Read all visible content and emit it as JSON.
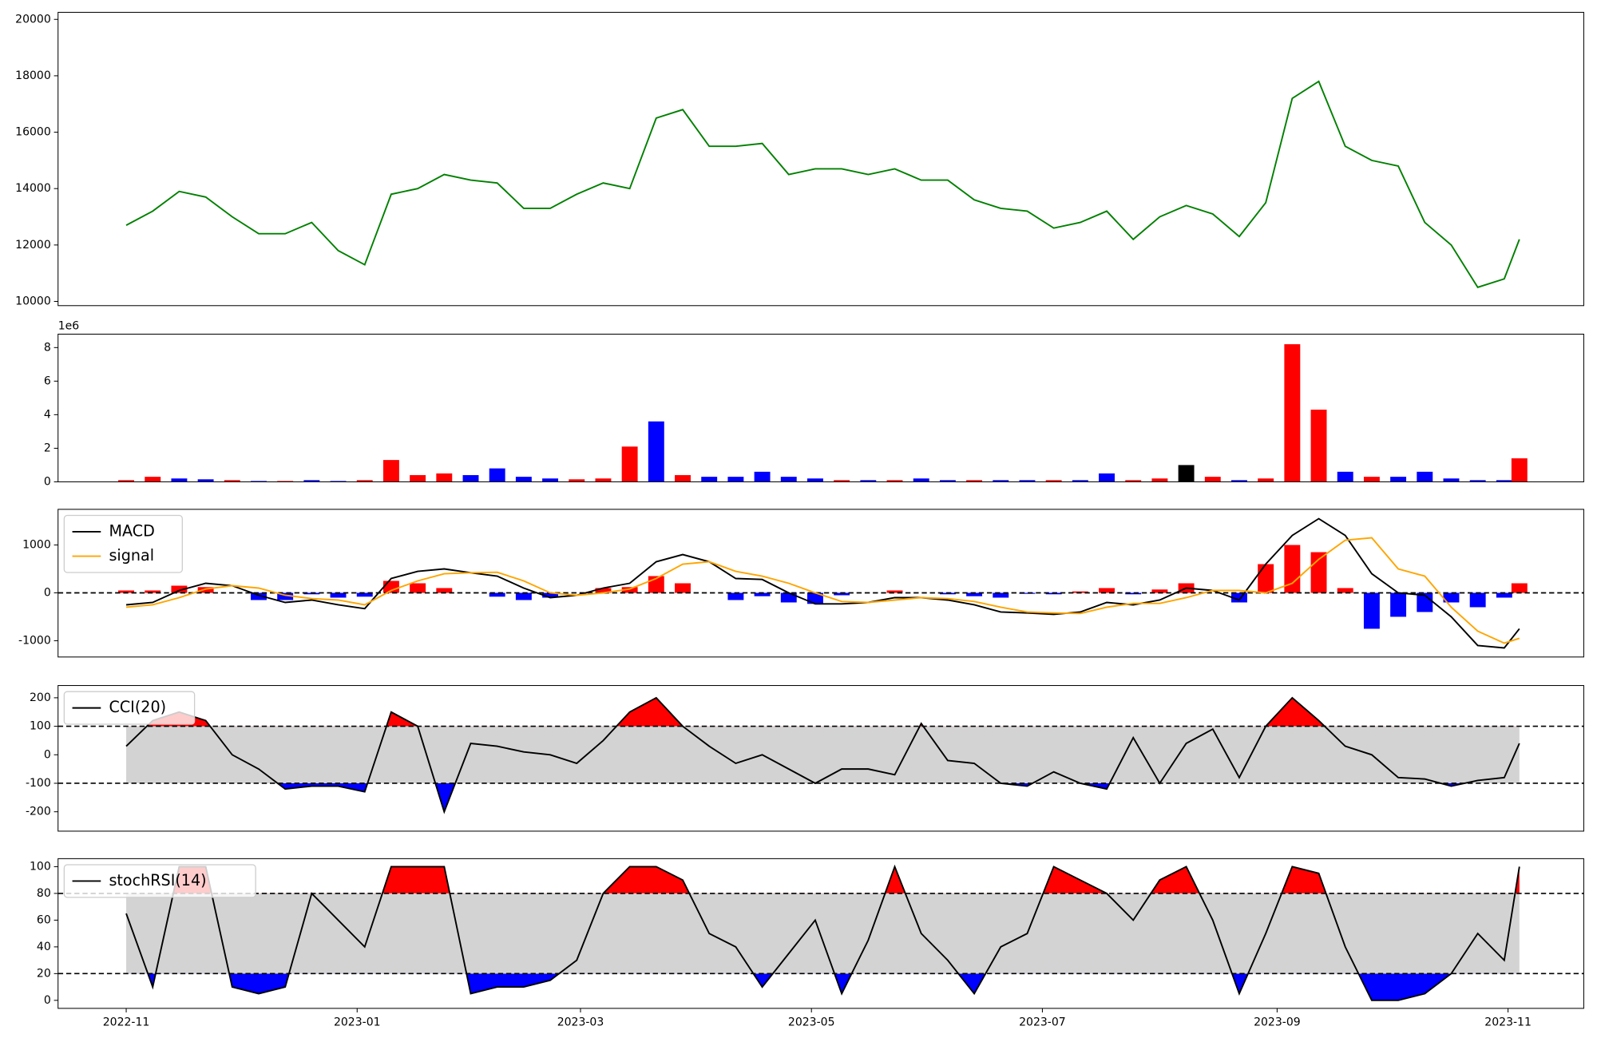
{
  "chart_data": [
    {
      "type": "line",
      "color": "#008000",
      "x": [
        0,
        7,
        14,
        21,
        28,
        35,
        42,
        49,
        56,
        63,
        70,
        77,
        84,
        91,
        98,
        105,
        112,
        119,
        126,
        133,
        140,
        147,
        154,
        161,
        168,
        175,
        182,
        189,
        196,
        203,
        210,
        217,
        224,
        231,
        238,
        245,
        252,
        259,
        266,
        273,
        280,
        287,
        294,
        301,
        308,
        315,
        322,
        329,
        336,
        343,
        350,
        357,
        364,
        368
      ],
      "values": [
        12700,
        13200,
        13900,
        13700,
        13000,
        12400,
        12400,
        12800,
        11800,
        11300,
        13800,
        14000,
        14500,
        14300,
        14200,
        13300,
        13300,
        13800,
        14200,
        14000,
        16500,
        16800,
        15500,
        15500,
        15600,
        14500,
        14700,
        14700,
        14500,
        14700,
        14300,
        14300,
        13600,
        13300,
        13200,
        12600,
        12800,
        13200,
        12200,
        13000,
        13400,
        13100,
        12300,
        13500,
        17200,
        17800,
        15500,
        15000,
        14800,
        12800,
        12000,
        10500,
        10800,
        12200
      ],
      "xlim": [
        -18,
        385
      ],
      "ylim": [
        9850,
        20250
      ],
      "yticks": [
        10000,
        12000,
        14000,
        16000,
        18000,
        20000
      ]
    },
    {
      "type": "bar",
      "offset_label": "1e6",
      "x": [
        0,
        7,
        14,
        21,
        28,
        35,
        42,
        49,
        56,
        63,
        70,
        77,
        84,
        91,
        98,
        105,
        112,
        119,
        126,
        133,
        140,
        147,
        154,
        161,
        168,
        175,
        182,
        189,
        196,
        203,
        210,
        217,
        224,
        231,
        238,
        245,
        252,
        259,
        266,
        273,
        280,
        287,
        294,
        301,
        308,
        315,
        322,
        329,
        336,
        343,
        350,
        357,
        364,
        368
      ],
      "values": [
        0.1,
        0.3,
        0.2,
        0.15,
        0.1,
        0.05,
        0.05,
        0.1,
        0.05,
        0.1,
        1.3,
        0.4,
        0.5,
        0.4,
        0.8,
        0.3,
        0.2,
        0.15,
        0.2,
        2.1,
        3.6,
        0.4,
        0.3,
        0.3,
        0.6,
        0.3,
        0.2,
        0.1,
        0.1,
        0.1,
        0.2,
        0.1,
        0.1,
        0.1,
        0.1,
        0.1,
        0.1,
        0.5,
        0.1,
        0.2,
        1.0,
        0.3,
        0.1,
        0.2,
        8.2,
        4.3,
        0.6,
        0.3,
        0.3,
        0.6,
        0.2,
        0.1,
        0.1,
        1.4
      ],
      "bar_colors": [
        "#ff0000",
        "#ff0000",
        "#0000ff",
        "#0000ff",
        "#ff0000",
        "#0000ff",
        "#ff0000",
        "#0000ff",
        "#0000ff",
        "#ff0000",
        "#ff0000",
        "#ff0000",
        "#ff0000",
        "#0000ff",
        "#0000ff",
        "#0000ff",
        "#0000ff",
        "#ff0000",
        "#ff0000",
        "#ff0000",
        "#0000ff",
        "#ff0000",
        "#0000ff",
        "#0000ff",
        "#0000ff",
        "#0000ff",
        "#0000ff",
        "#ff0000",
        "#0000ff",
        "#ff0000",
        "#0000ff",
        "#0000ff",
        "#ff0000",
        "#0000ff",
        "#0000ff",
        "#ff0000",
        "#0000ff",
        "#0000ff",
        "#ff0000",
        "#ff0000",
        "#000000",
        "#ff0000",
        "#0000ff",
        "#ff0000",
        "#ff0000",
        "#ff0000",
        "#0000ff",
        "#ff0000",
        "#0000ff",
        "#0000ff",
        "#0000ff",
        "#0000ff",
        "#0000ff",
        "#ff0000"
      ],
      "xlim": [
        -18,
        385
      ],
      "ylim": [
        0,
        8.8
      ],
      "yticks": [
        0,
        2,
        4,
        6,
        8
      ]
    },
    {
      "type": "line",
      "legend": "upper left",
      "x": [
        0,
        7,
        14,
        21,
        28,
        35,
        42,
        49,
        56,
        63,
        70,
        77,
        84,
        91,
        98,
        105,
        112,
        119,
        126,
        133,
        140,
        147,
        154,
        161,
        168,
        175,
        182,
        189,
        196,
        203,
        210,
        217,
        224,
        231,
        238,
        245,
        252,
        259,
        266,
        273,
        280,
        287,
        294,
        301,
        308,
        315,
        322,
        329,
        336,
        343,
        350,
        357,
        364,
        368
      ],
      "series": [
        {
          "name": "MACD",
          "color": "#000000",
          "values": [
            -250,
            -200,
            50,
            200,
            150,
            -50,
            -200,
            -150,
            -250,
            -330,
            300,
            450,
            500,
            420,
            350,
            100,
            -100,
            -50,
            100,
            200,
            650,
            800,
            650,
            300,
            280,
            0,
            -230,
            -230,
            -200,
            -100,
            -100,
            -150,
            -250,
            -400,
            -420,
            -450,
            -400,
            -200,
            -250,
            -150,
            100,
            50,
            -150,
            600,
            1200,
            1550,
            1200,
            400,
            0,
            -50,
            -500,
            -1100,
            -1150,
            -750
          ]
        },
        {
          "name": "signal",
          "color": "#ffa500",
          "values": [
            -300,
            -250,
            -100,
            80,
            150,
            100,
            -50,
            -120,
            -150,
            -250,
            50,
            250,
            400,
            420,
            430,
            250,
            0,
            -50,
            0,
            80,
            300,
            600,
            650,
            450,
            350,
            200,
            0,
            -180,
            -200,
            -150,
            -100,
            -120,
            -180,
            -300,
            -400,
            -420,
            -430,
            -300,
            -220,
            -220,
            -100,
            50,
            50,
            0,
            200,
            700,
            1100,
            1150,
            500,
            350,
            -300,
            -800,
            -1050,
            -950
          ]
        }
      ],
      "histogram": {
        "positive_color": "#ff0000",
        "negative_color": "#0000ff",
        "values": [
          50,
          50,
          150,
          120,
          0,
          -150,
          -150,
          -30,
          -100,
          -80,
          250,
          200,
          100,
          0,
          -80,
          -150,
          -100,
          0,
          100,
          120,
          350,
          200,
          0,
          -150,
          -70,
          -200,
          -230,
          -50,
          0,
          50,
          0,
          -30,
          -70,
          -100,
          -20,
          -30,
          30,
          100,
          -30,
          70,
          200,
          0,
          -200,
          600,
          1000,
          850,
          100,
          -750,
          -500,
          -400,
          -200,
          -300,
          -100,
          200
        ]
      },
      "hlines": [
        0
      ],
      "xlim": [
        -18,
        385
      ],
      "ylim": [
        -1340,
        1745
      ],
      "yticks": [
        -1000,
        0,
        1000
      ]
    },
    {
      "type": "line",
      "legend": "upper left",
      "x": [
        0,
        7,
        14,
        21,
        28,
        35,
        42,
        49,
        56,
        63,
        70,
        77,
        84,
        91,
        98,
        105,
        112,
        119,
        126,
        133,
        140,
        147,
        154,
        161,
        168,
        175,
        182,
        189,
        196,
        203,
        210,
        217,
        224,
        231,
        238,
        245,
        252,
        259,
        266,
        273,
        280,
        287,
        294,
        301,
        308,
        315,
        322,
        329,
        336,
        343,
        350,
        357,
        364,
        368
      ],
      "series": [
        {
          "name": "CCI(20)",
          "color": "#000000",
          "values": [
            30,
            120,
            150,
            120,
            0,
            -50,
            -120,
            -110,
            -110,
            -130,
            150,
            100,
            -200,
            40,
            30,
            10,
            0,
            -30,
            50,
            150,
            200,
            100,
            30,
            -30,
            0,
            -50,
            -100,
            -50,
            -50,
            -70,
            110,
            -20,
            -30,
            -100,
            -110,
            -60,
            -100,
            -120,
            60,
            -100,
            40,
            90,
            -80,
            100,
            200,
            120,
            30,
            0,
            -80,
            -85,
            -110,
            -90,
            -80,
            40
          ]
        }
      ],
      "hlines": [
        -100,
        100
      ],
      "band_color": "#d3d3d3",
      "above_color": "#ff0000",
      "below_color": "#0000ff",
      "xlim": [
        -18,
        385
      ],
      "ylim": [
        -268,
        243
      ],
      "yticks": [
        -200,
        -100,
        0,
        100,
        200
      ]
    },
    {
      "type": "line",
      "legend": "upper left",
      "x": [
        0,
        7,
        14,
        21,
        28,
        35,
        42,
        49,
        56,
        63,
        70,
        77,
        84,
        91,
        98,
        105,
        112,
        119,
        126,
        133,
        140,
        147,
        154,
        161,
        168,
        175,
        182,
        189,
        196,
        203,
        210,
        217,
        224,
        231,
        238,
        245,
        252,
        259,
        266,
        273,
        280,
        287,
        294,
        301,
        308,
        315,
        322,
        329,
        336,
        343,
        350,
        357,
        364,
        368
      ],
      "series": [
        {
          "name": "stochRSI(14)",
          "color": "#000000",
          "values": [
            65,
            10,
            100,
            100,
            10,
            5,
            10,
            80,
            60,
            40,
            100,
            100,
            100,
            5,
            10,
            10,
            15,
            30,
            80,
            100,
            100,
            90,
            50,
            40,
            10,
            35,
            60,
            5,
            45,
            100,
            50,
            30,
            5,
            40,
            50,
            100,
            90,
            80,
            60,
            90,
            100,
            60,
            5,
            50,
            100,
            95,
            40,
            0,
            0,
            5,
            20,
            50,
            30,
            100
          ]
        }
      ],
      "hlines": [
        20,
        80
      ],
      "band_color": "#d3d3d3",
      "above_color": "#ff0000",
      "below_color": "#0000ff",
      "xlim": [
        -18,
        385
      ],
      "ylim": [
        -6,
        106
      ],
      "yticks": [
        0,
        20,
        40,
        60,
        80,
        100
      ],
      "xticks": [
        {
          "value": 0,
          "label": "2022-11"
        },
        {
          "value": 61,
          "label": "2023-01"
        },
        {
          "value": 120,
          "label": "2023-03"
        },
        {
          "value": 181,
          "label": "2023-05"
        },
        {
          "value": 242,
          "label": "2023-07"
        },
        {
          "value": 304,
          "label": "2023-09"
        },
        {
          "value": 365,
          "label": "2023-11"
        }
      ]
    }
  ]
}
